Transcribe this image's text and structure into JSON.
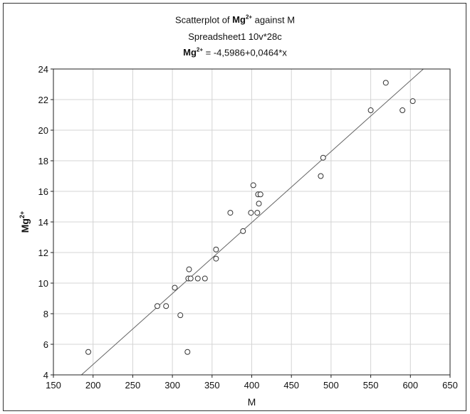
{
  "chart_data": {
    "type": "scatter",
    "title": {
      "prefix": "Scatterplot of ",
      "var_base": "Mg",
      "var_sup": "2+",
      "suffix": " against M"
    },
    "subtitle": "Spreadsheet1 10v*28c",
    "equation": {
      "var_base": "Mg",
      "var_sup": "2+",
      "text": " = -4,5986+0,0464*x"
    },
    "xlabel": "M",
    "ylabel": {
      "base": "Mg",
      "sup": "2+"
    },
    "xlim": [
      150,
      650
    ],
    "ylim": [
      4,
      24
    ],
    "xticks": [
      "150",
      "200",
      "250",
      "300",
      "350",
      "400",
      "450",
      "500",
      "550",
      "600",
      "650"
    ],
    "yticks": [
      "4",
      "6",
      "8",
      "10",
      "12",
      "14",
      "16",
      "18",
      "20",
      "22",
      "24"
    ],
    "grid": true,
    "regression": {
      "intercept": -4.5986,
      "slope": 0.0464
    },
    "points": [
      {
        "x": 194,
        "y": 5.5
      },
      {
        "x": 281,
        "y": 8.5
      },
      {
        "x": 292,
        "y": 8.5
      },
      {
        "x": 303,
        "y": 9.7
      },
      {
        "x": 310,
        "y": 7.9
      },
      {
        "x": 319,
        "y": 5.5
      },
      {
        "x": 320,
        "y": 10.3
      },
      {
        "x": 321,
        "y": 10.9
      },
      {
        "x": 323,
        "y": 10.3
      },
      {
        "x": 332,
        "y": 10.3
      },
      {
        "x": 341,
        "y": 10.3
      },
      {
        "x": 355,
        "y": 12.2
      },
      {
        "x": 355,
        "y": 11.6
      },
      {
        "x": 373,
        "y": 14.6
      },
      {
        "x": 389,
        "y": 13.4
      },
      {
        "x": 399,
        "y": 14.6
      },
      {
        "x": 402,
        "y": 16.4
      },
      {
        "x": 407,
        "y": 14.6
      },
      {
        "x": 408,
        "y": 15.8
      },
      {
        "x": 409,
        "y": 15.2
      },
      {
        "x": 411,
        "y": 15.8
      },
      {
        "x": 487,
        "y": 17.0
      },
      {
        "x": 490,
        "y": 18.2
      },
      {
        "x": 550,
        "y": 21.3
      },
      {
        "x": 569,
        "y": 23.1
      },
      {
        "x": 590,
        "y": 21.3
      },
      {
        "x": 603,
        "y": 21.9
      }
    ]
  }
}
